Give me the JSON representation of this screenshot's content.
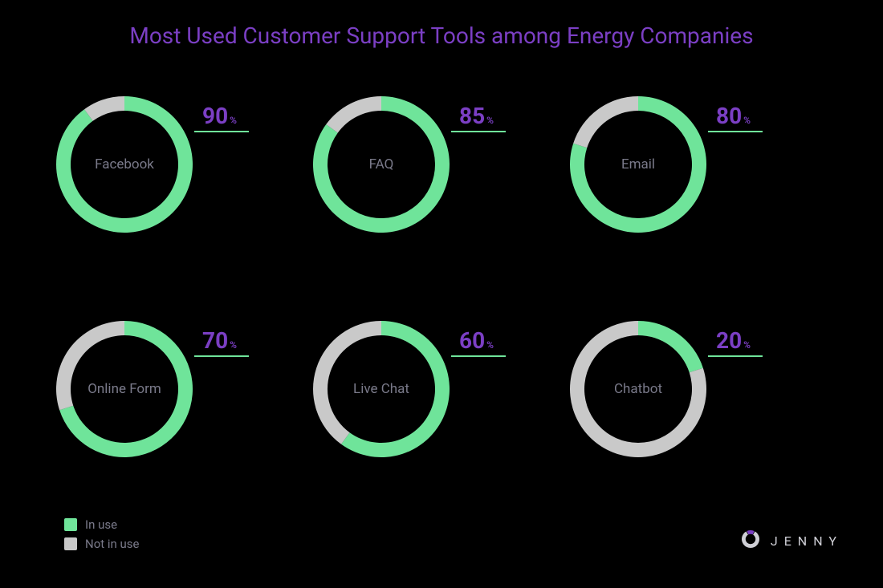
{
  "title": {
    "text": "Most Used Customer Support Tools among Energy Companies",
    "color": "#7b3fc4",
    "fontsize": 28
  },
  "colors": {
    "in_use": "#6fe49a",
    "not_in_use": "#c9c9c9",
    "accent_purple": "#7b3fc4",
    "label_text": "#7a7a8a",
    "background": "#000000",
    "brand_text": "#cfcfd6"
  },
  "donut": {
    "outer_radius": 85,
    "inner_radius": 67,
    "start_angle_deg": 0,
    "direction": "clockwise"
  },
  "charts": [
    {
      "label": "Facebook",
      "percent": 90
    },
    {
      "label": "FAQ",
      "percent": 85
    },
    {
      "label": "Email",
      "percent": 80
    },
    {
      "label": "Online Form",
      "percent": 70
    },
    {
      "label": "Live Chat",
      "percent": 60
    },
    {
      "label": "Chatbot",
      "percent": 20
    }
  ],
  "percent_style": {
    "num_fontsize": 28,
    "num_color": "#7b3fc4",
    "symbol": "%",
    "underline_color": "#6fe49a"
  },
  "legend": {
    "items": [
      {
        "label": "In use",
        "color_key": "in_use"
      },
      {
        "label": "Not in use",
        "color_key": "not_in_use"
      }
    ],
    "text_color": "#7a7a8a"
  },
  "brand": {
    "text": "JENNY",
    "ring_color": "#cfcfd6",
    "gap_color": "#7b3fc4"
  }
}
